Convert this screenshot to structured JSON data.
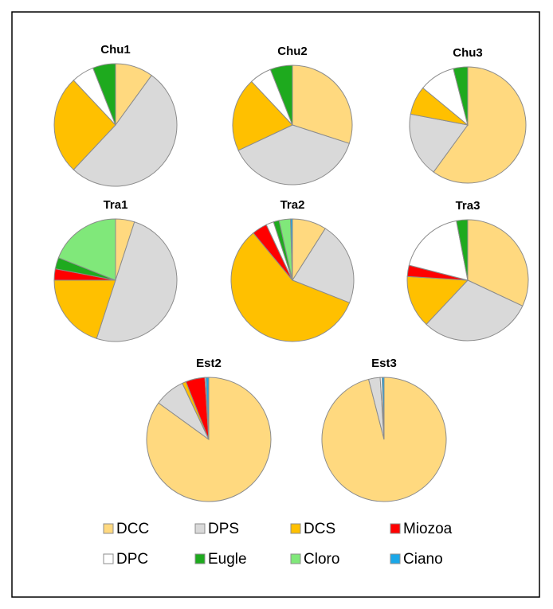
{
  "legend": {
    "labels": [
      "DCC",
      "DPS",
      "DCS",
      "Miozoa",
      "DPC",
      "Eugle",
      "Cloro",
      "Ciano"
    ],
    "colors": [
      "#FFD97F",
      "#D9D9D9",
      "#FFC000",
      "#FF0000",
      "#FFFFFF",
      "#1EAA1E",
      "#80E87A",
      "#1AA7E8"
    ]
  },
  "chart_data": [
    {
      "type": "pie",
      "title": "Chu1",
      "values": [
        10,
        52,
        26,
        0,
        6,
        6,
        0,
        0
      ]
    },
    {
      "type": "pie",
      "title": "Chu2",
      "values": [
        30,
        38,
        20,
        0,
        6,
        6,
        0,
        0
      ]
    },
    {
      "type": "pie",
      "title": "Chu3",
      "values": [
        60,
        18,
        8,
        0,
        10,
        4,
        0,
        0
      ]
    },
    {
      "type": "pie",
      "title": "Tra1",
      "values": [
        5,
        50,
        20,
        3,
        0,
        3,
        19,
        0
      ]
    },
    {
      "type": "pie",
      "title": "Tra2",
      "values": [
        9,
        22,
        58,
        4,
        2,
        1.5,
        3,
        0.5
      ]
    },
    {
      "type": "pie",
      "title": "Tra3",
      "values": [
        32,
        30,
        14,
        3,
        18,
        3,
        0,
        0
      ]
    },
    {
      "type": "pie",
      "title": "Est2",
      "values": [
        85,
        8,
        1,
        5,
        0.3,
        0,
        0,
        0.7
      ]
    },
    {
      "type": "pie",
      "title": "Est3",
      "values": [
        96,
        3,
        0,
        0,
        0.5,
        0,
        0,
        0.5
      ]
    }
  ]
}
